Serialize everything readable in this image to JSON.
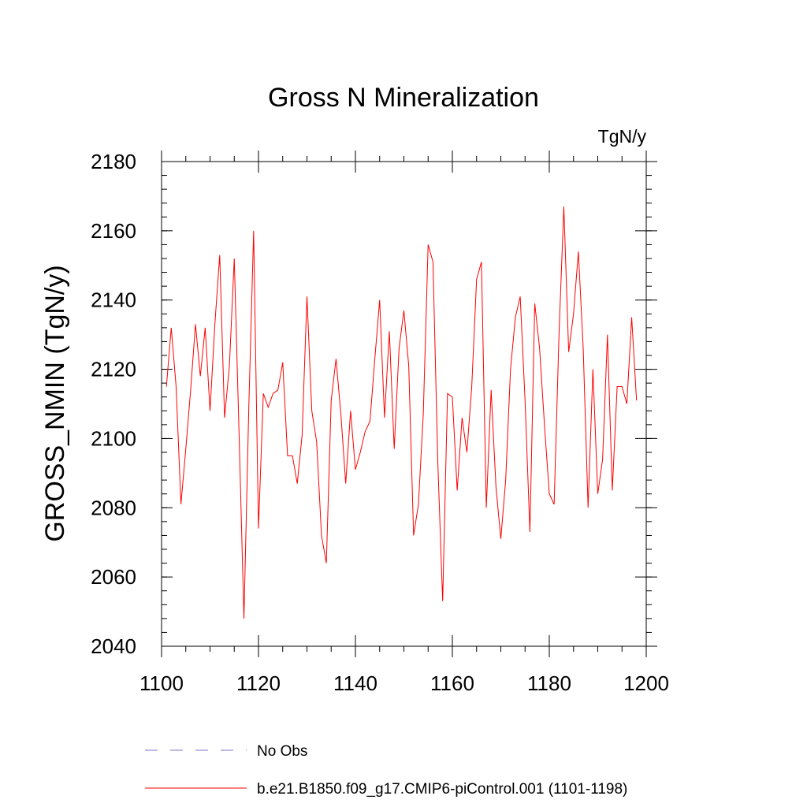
{
  "chart_data": {
    "type": "line",
    "title": "Gross N Mineralization",
    "units_label": "TgN/y",
    "xlabel": "",
    "ylabel": "GROSS_NMIN  (TgN/y)",
    "xlim": [
      1100,
      1200
    ],
    "ylim": [
      2040,
      2180
    ],
    "x_major_ticks": [
      1100,
      1120,
      1140,
      1160,
      1180,
      1200
    ],
    "x_minor_step": 5,
    "y_major_ticks": [
      2040,
      2060,
      2080,
      2100,
      2120,
      2140,
      2160,
      2180
    ],
    "y_minor_step": 4,
    "grid": false,
    "series": [
      {
        "name": "b.e21.B1850.f09_g17.CMIP6-piControl.001 (1101-1198)",
        "color": "#ff0000",
        "style": "solid",
        "x_start": 1101,
        "values": [
          2115,
          2132,
          2115,
          2081,
          2097,
          2114,
          2133,
          2118,
          2132,
          2108,
          2133,
          2153,
          2106,
          2121,
          2152,
          2101,
          2048,
          2109,
          2160,
          2074,
          2113,
          2109,
          2113,
          2114,
          2122,
          2095,
          2095,
          2087,
          2101,
          2141,
          2108,
          2099,
          2072,
          2064,
          2111,
          2123,
          2107,
          2087,
          2108,
          2091,
          2096,
          2102,
          2105,
          2123,
          2140,
          2106,
          2131,
          2097,
          2126,
          2137,
          2121,
          2072,
          2081,
          2107,
          2156,
          2151,
          2093,
          2053,
          2113,
          2112,
          2085,
          2106,
          2096,
          2115,
          2146,
          2151,
          2080,
          2114,
          2086,
          2071,
          2088,
          2120,
          2135,
          2141,
          2111,
          2073,
          2139,
          2126,
          2104,
          2084,
          2081,
          2130,
          2167,
          2125,
          2136,
          2154,
          2126,
          2080,
          2120,
          2084,
          2094,
          2130,
          2085,
          2115,
          2115,
          2110,
          2135,
          2111
        ]
      }
    ],
    "legend": [
      {
        "label": "No Obs",
        "color": "#7777cc",
        "style": "dashed"
      },
      {
        "label": "b.e21.B1850.f09_g17.CMIP6-piControl.001 (1101-1198)",
        "color": "#ff0000",
        "style": "solid"
      }
    ]
  }
}
